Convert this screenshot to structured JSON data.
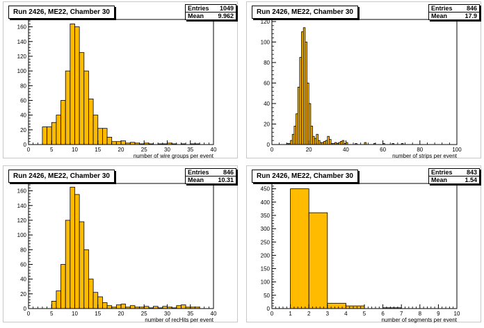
{
  "chart_data": [
    {
      "type": "bar",
      "title": "Run 2426, ME22, Chamber 30",
      "xlabel": "number of wire groups per event",
      "ylabel": "",
      "stats": {
        "entries_label": "Entries",
        "entries": "1049",
        "mean_label": "Mean",
        "mean": "9.962"
      },
      "xlim": [
        0,
        40
      ],
      "ylim": [
        0,
        170
      ],
      "xticks": [
        "0",
        "5",
        "10",
        "15",
        "20",
        "25",
        "30",
        "35",
        "40"
      ],
      "yticks": [
        "0",
        "20",
        "40",
        "60",
        "80",
        "100",
        "120",
        "140",
        "160"
      ],
      "bin_width": 1,
      "x": [
        3,
        4,
        5,
        6,
        7,
        8,
        9,
        10,
        11,
        12,
        13,
        14,
        15,
        16,
        17,
        18,
        19,
        20,
        21,
        22,
        23,
        24,
        25,
        26,
        27,
        28,
        29,
        30,
        31,
        32,
        33,
        34,
        35,
        36
      ],
      "values": [
        24,
        24,
        30,
        40,
        60,
        100,
        164,
        160,
        125,
        100,
        62,
        40,
        22,
        22,
        10,
        4,
        4,
        5,
        2,
        3,
        2,
        1,
        2,
        1,
        0,
        1,
        1,
        2,
        1,
        0,
        1,
        0,
        1,
        1
      ]
    },
    {
      "type": "bar",
      "title": "Run 2426, ME22, Chamber 30",
      "xlabel": "number of strips per event",
      "ylabel": "",
      "stats": {
        "entries_label": "Entries",
        "entries": "846",
        "mean_label": "Mean",
        "mean": "17.9"
      },
      "xlim": [
        0,
        100
      ],
      "ylim": [
        0,
        122
      ],
      "xticks": [
        "0",
        "20",
        "40",
        "60",
        "80",
        "100"
      ],
      "yticks": [
        "0",
        "20",
        "40",
        "60",
        "80",
        "100",
        "120"
      ],
      "bin_width": 1,
      "x": [
        8,
        9,
        10,
        11,
        12,
        13,
        14,
        15,
        16,
        17,
        18,
        19,
        20,
        21,
        22,
        23,
        24,
        25,
        26,
        27,
        28,
        29,
        30,
        31,
        32,
        33,
        34,
        35,
        36,
        37,
        38,
        39,
        40,
        45,
        50,
        55,
        60,
        65,
        70
      ],
      "values": [
        1,
        1,
        4,
        10,
        18,
        30,
        56,
        85,
        110,
        114,
        100,
        60,
        40,
        18,
        8,
        6,
        10,
        4,
        2,
        2,
        3,
        4,
        8,
        5,
        1,
        1,
        2,
        1,
        2,
        3,
        4,
        1,
        2,
        1,
        2,
        1,
        1,
        1,
        1
      ]
    },
    {
      "type": "bar",
      "title": "Run 2426, ME22, Chamber 30",
      "xlabel": "number of recHits per event",
      "ylabel": "",
      "stats": {
        "entries_label": "Entries",
        "entries": "846",
        "mean_label": "Mean",
        "mean": "10.31"
      },
      "xlim": [
        0,
        40
      ],
      "ylim": [
        0,
        170
      ],
      "xticks": [
        "0",
        "5",
        "10",
        "15",
        "20",
        "25",
        "30",
        "35",
        "40"
      ],
      "yticks": [
        "0",
        "20",
        "40",
        "60",
        "80",
        "100",
        "120",
        "140",
        "160"
      ],
      "bin_width": 1,
      "x": [
        5,
        6,
        7,
        8,
        9,
        10,
        11,
        12,
        13,
        14,
        15,
        16,
        17,
        18,
        19,
        20,
        21,
        22,
        23,
        24,
        25,
        26,
        27,
        28,
        29,
        30,
        31,
        32,
        33,
        34,
        35,
        36
      ],
      "values": [
        10,
        24,
        60,
        120,
        165,
        155,
        118,
        80,
        40,
        22,
        16,
        8,
        4,
        2,
        5,
        6,
        2,
        4,
        2,
        2,
        3,
        1,
        3,
        1,
        3,
        2,
        1,
        4,
        5,
        2,
        2,
        2
      ]
    },
    {
      "type": "bar",
      "title": "Run 2426, ME22, Chamber 30",
      "xlabel": "number of segments per event",
      "ylabel": "",
      "stats": {
        "entries_label": "Entries",
        "entries": "843",
        "mean_label": "Mean",
        "mean": "1.54"
      },
      "xlim": [
        0,
        10
      ],
      "ylim": [
        0,
        470
      ],
      "xticks": [
        "0",
        "1",
        "2",
        "3",
        "4",
        "5",
        "6",
        "7",
        "8",
        "9",
        "10"
      ],
      "yticks": [
        "0",
        "50",
        "100",
        "150",
        "200",
        "250",
        "300",
        "350",
        "400",
        "450"
      ],
      "bin_width": 1,
      "x": [
        1,
        2,
        3,
        4,
        6
      ],
      "values": [
        450,
        360,
        20,
        10,
        3
      ]
    }
  ],
  "colors": {
    "bar_fill": "#ffbb00",
    "bar_edge": "#000000"
  }
}
